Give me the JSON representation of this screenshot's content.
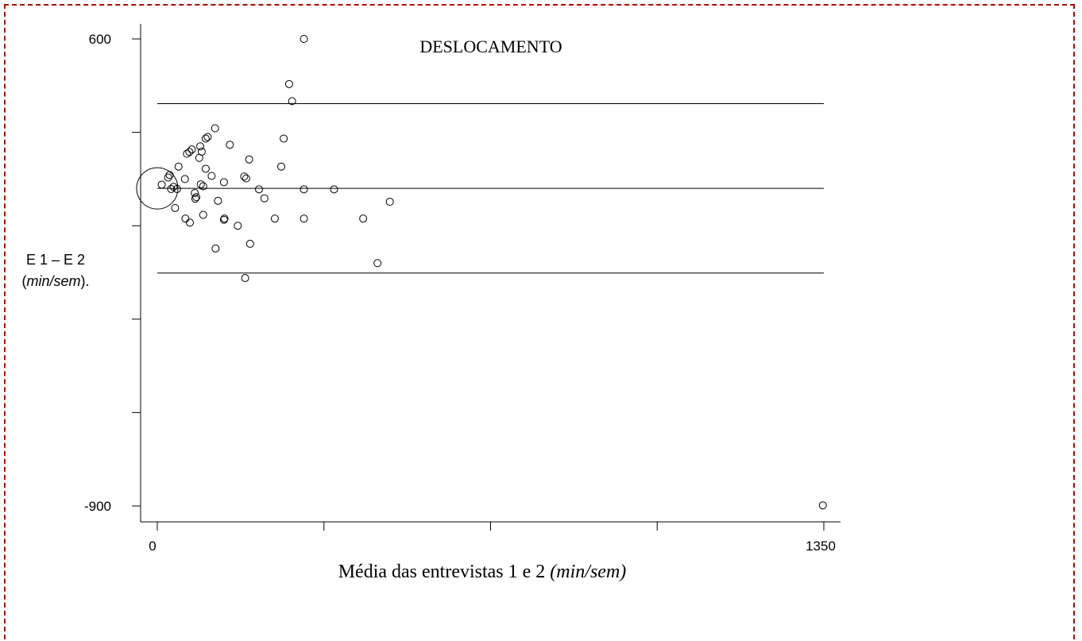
{
  "chart_data": {
    "type": "scatter",
    "title": "DESLOCAMENTO",
    "xlabel_main": "Média das entrevistas 1 e 2",
    "xlabel_unit": "(min/sem)",
    "ylabel_line1": "E 1 – E 2",
    "ylabel_line2_unit": "min/sem",
    "ylabel_line2_prefix": "(",
    "ylabel_line2_suffix": ").",
    "xlim": [
      0,
      1350
    ],
    "ylim": [
      -900,
      600
    ],
    "x_ticks": [
      0,
      337.5,
      675,
      1012.5,
      1350
    ],
    "x_tick_labels": [
      "0",
      "",
      "",
      "",
      "1350"
    ],
    "y_ticks": [
      600,
      300,
      0,
      -300,
      -600,
      -900
    ],
    "y_tick_labels": [
      "600",
      "",
      "",
      "",
      "",
      "-900"
    ],
    "reference_lines": {
      "mean": 120,
      "upper_limit": 392,
      "lower_limit": -152
    },
    "large_marker": {
      "x": 0,
      "y": 120
    },
    "points": [
      {
        "x": 297,
        "y": 600
      },
      {
        "x": 267,
        "y": 455
      },
      {
        "x": 273,
        "y": 400
      },
      {
        "x": 117,
        "y": 313
      },
      {
        "x": 102,
        "y": 285
      },
      {
        "x": 98,
        "y": 280
      },
      {
        "x": 147,
        "y": 260
      },
      {
        "x": 256,
        "y": 280
      },
      {
        "x": 87,
        "y": 255
      },
      {
        "x": 70,
        "y": 245
      },
      {
        "x": 65,
        "y": 237
      },
      {
        "x": 60,
        "y": 231
      },
      {
        "x": 90,
        "y": 238
      },
      {
        "x": 85,
        "y": 218
      },
      {
        "x": 186,
        "y": 213
      },
      {
        "x": 251,
        "y": 190
      },
      {
        "x": 43,
        "y": 190
      },
      {
        "x": 98,
        "y": 183
      },
      {
        "x": 25,
        "y": 163
      },
      {
        "x": 22,
        "y": 155
      },
      {
        "x": 110,
        "y": 160
      },
      {
        "x": 56,
        "y": 150
      },
      {
        "x": 176,
        "y": 158
      },
      {
        "x": 180,
        "y": 152
      },
      {
        "x": 135,
        "y": 140
      },
      {
        "x": 9,
        "y": 132
      },
      {
        "x": 88,
        "y": 133
      },
      {
        "x": 93,
        "y": 127
      },
      {
        "x": 33,
        "y": 125
      },
      {
        "x": 28,
        "y": 118
      },
      {
        "x": 40,
        "y": 118
      },
      {
        "x": 206,
        "y": 117
      },
      {
        "x": 297,
        "y": 117
      },
      {
        "x": 358,
        "y": 117
      },
      {
        "x": 76,
        "y": 105
      },
      {
        "x": 79,
        "y": 92
      },
      {
        "x": 77,
        "y": 87
      },
      {
        "x": 123,
        "y": 80
      },
      {
        "x": 217,
        "y": 88
      },
      {
        "x": 471,
        "y": 77
      },
      {
        "x": 36,
        "y": 57
      },
      {
        "x": 93,
        "y": 35
      },
      {
        "x": 57,
        "y": 23
      },
      {
        "x": 136,
        "y": 23
      },
      {
        "x": 135,
        "y": 19
      },
      {
        "x": 238,
        "y": 23
      },
      {
        "x": 297,
        "y": 23
      },
      {
        "x": 417,
        "y": 23
      },
      {
        "x": 66,
        "y": 10
      },
      {
        "x": 163,
        "y": 0
      },
      {
        "x": 188,
        "y": -58
      },
      {
        "x": 118,
        "y": -73
      },
      {
        "x": 446,
        "y": -120
      },
      {
        "x": 178,
        "y": -168
      },
      {
        "x": 1348,
        "y": -898
      }
    ]
  }
}
